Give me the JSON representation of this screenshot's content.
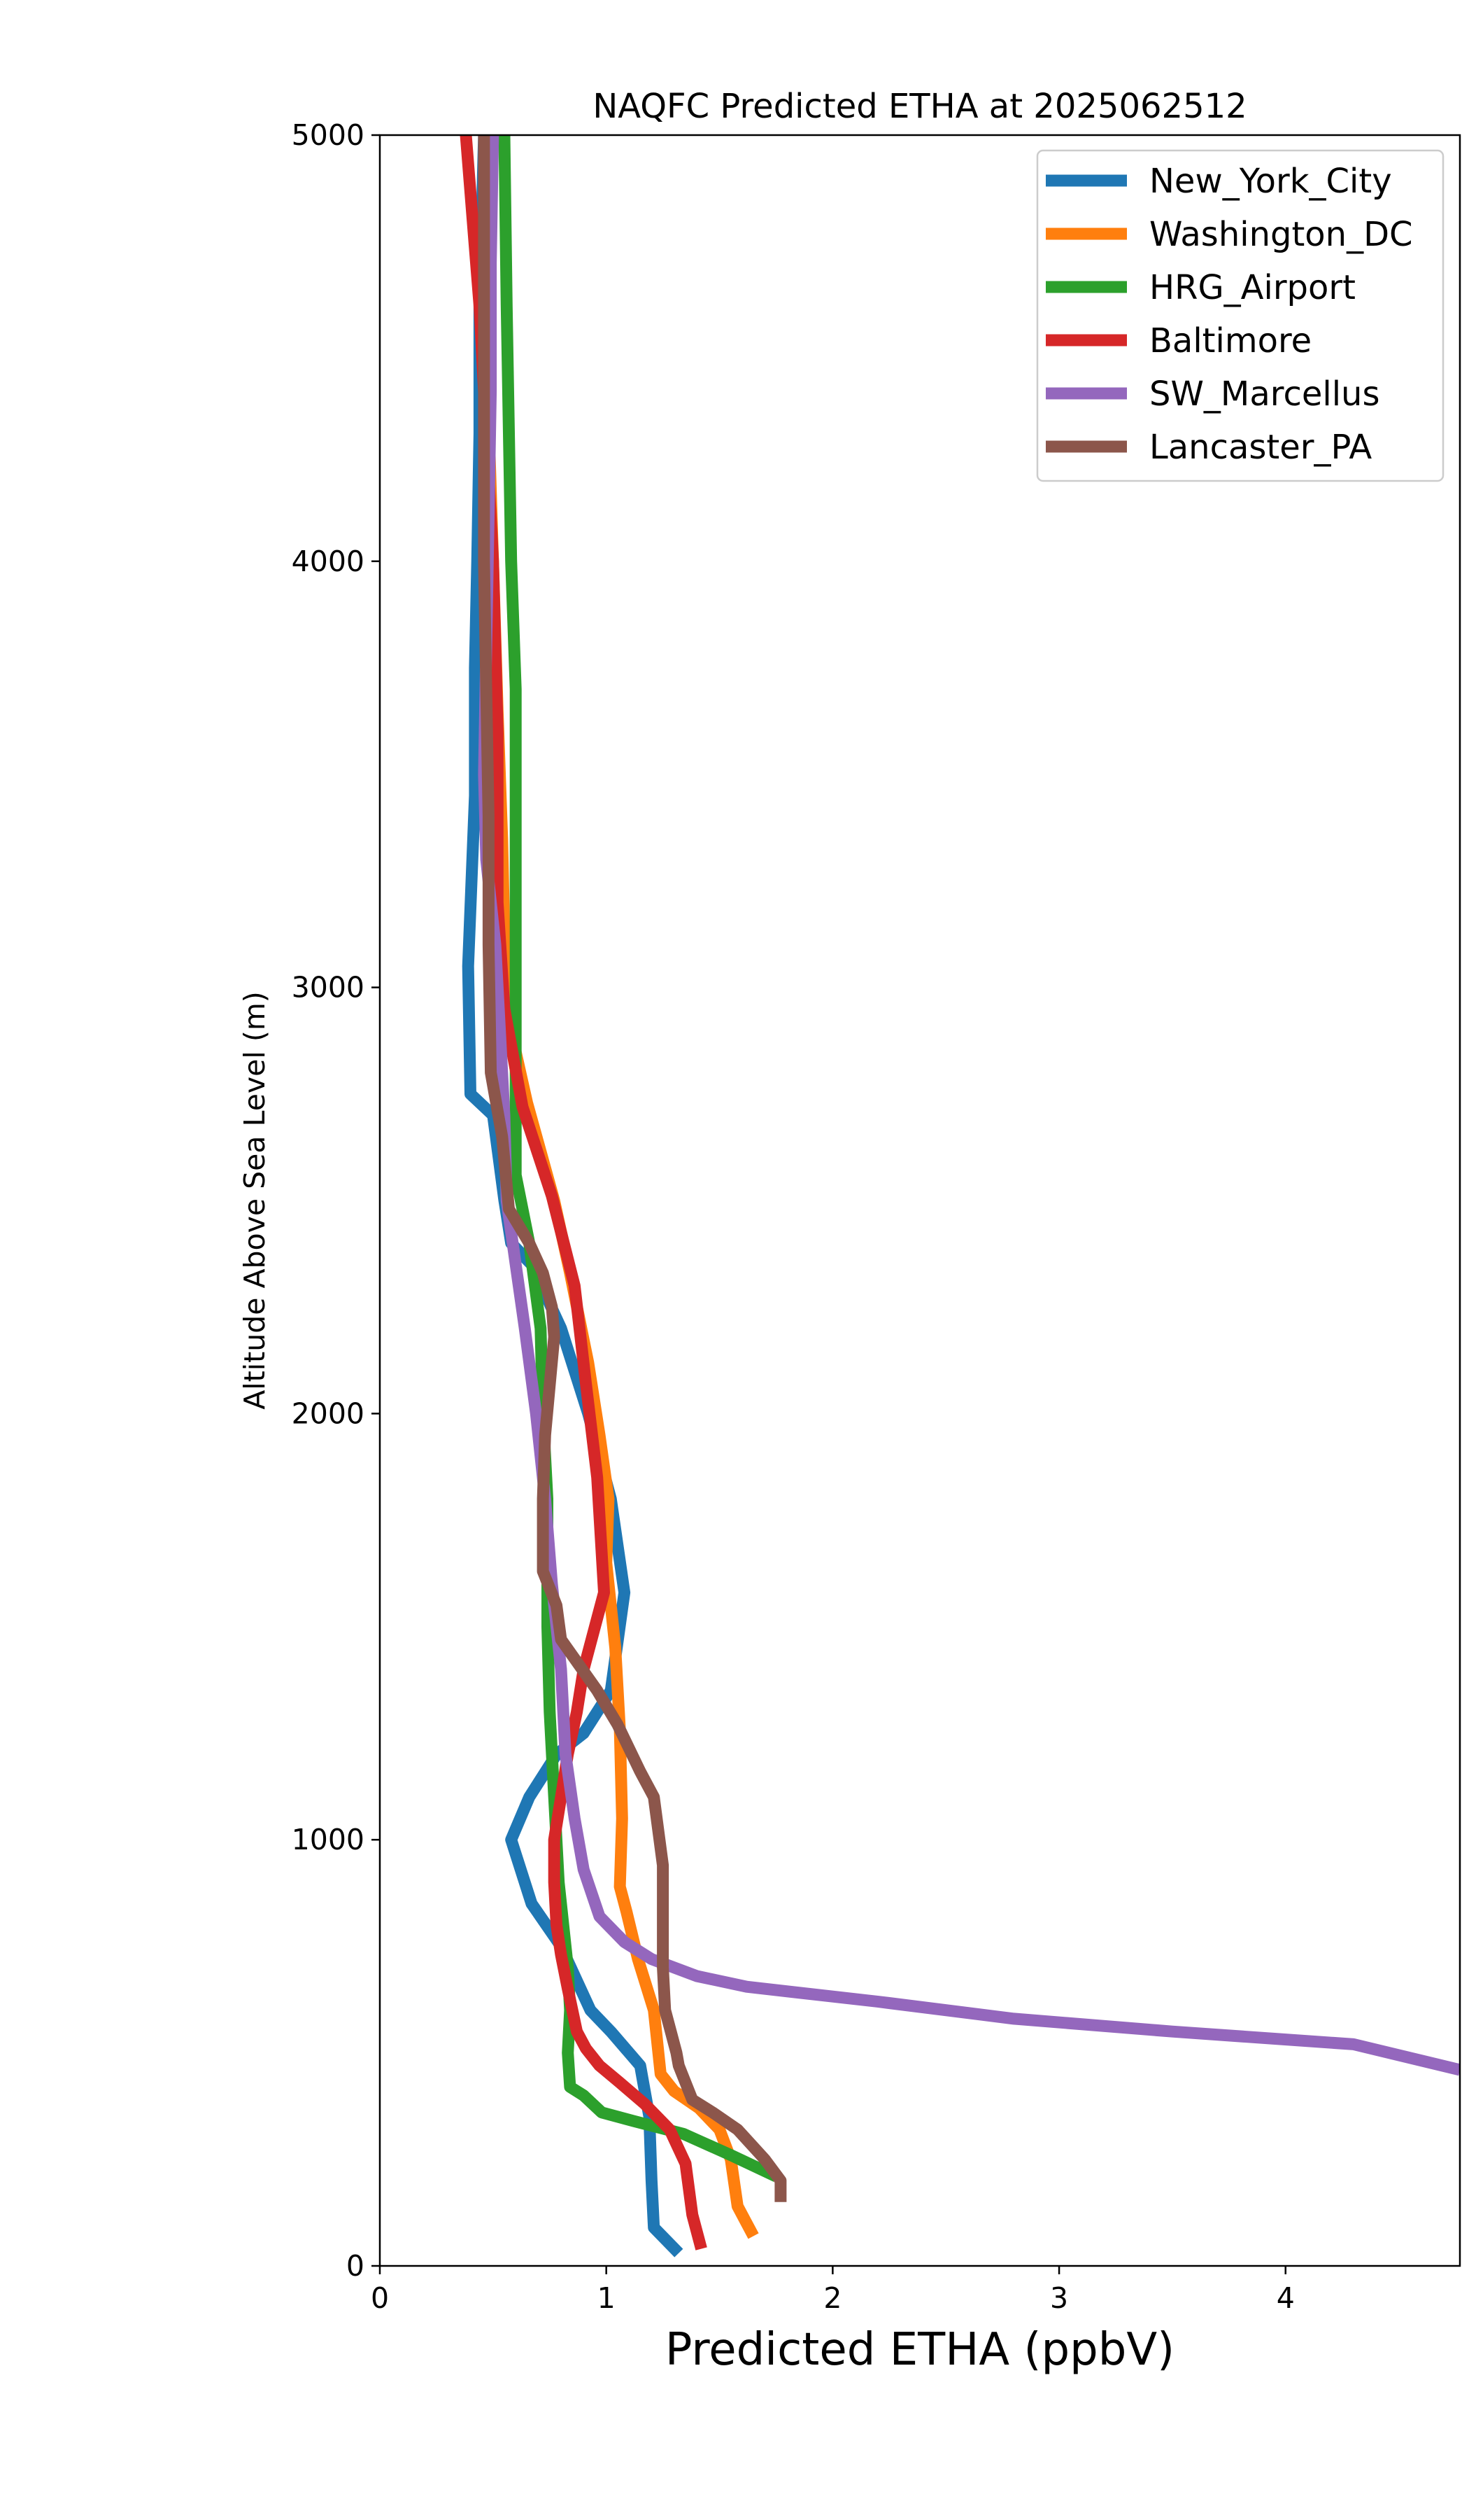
{
  "chart_data": {
    "type": "line",
    "title": "NAQFC Predicted ETHA at 2025062512",
    "xlabel": "Predicted ETHA (ppbV)",
    "ylabel": "Altitude Above Sea Level (m)",
    "xlim": [
      0,
      4.77
    ],
    "ylim": [
      0,
      5000
    ],
    "xticks": [
      0,
      1,
      2,
      3,
      4
    ],
    "yticks": [
      0,
      1000,
      2000,
      3000,
      4000,
      5000
    ],
    "grid": false,
    "legend_position": "top-right",
    "series": [
      {
        "name": "New_York_City",
        "color": "#1f77b4",
        "points": [
          [
            1.32,
            30
          ],
          [
            1.21,
            90
          ],
          [
            1.2,
            200
          ],
          [
            1.19,
            350
          ],
          [
            1.15,
            470
          ],
          [
            1.02,
            550
          ],
          [
            0.93,
            600
          ],
          [
            0.8,
            750
          ],
          [
            0.67,
            850
          ],
          [
            0.58,
            1000
          ],
          [
            0.66,
            1100
          ],
          [
            0.78,
            1200
          ],
          [
            0.9,
            1250
          ],
          [
            1.02,
            1350
          ],
          [
            1.08,
            1580
          ],
          [
            1.02,
            1800
          ],
          [
            0.92,
            2000
          ],
          [
            0.8,
            2200
          ],
          [
            0.67,
            2350
          ],
          [
            0.58,
            2400
          ],
          [
            0.55,
            2500
          ],
          [
            0.5,
            2700
          ],
          [
            0.4,
            2750
          ],
          [
            0.39,
            3050
          ],
          [
            0.42,
            3450
          ],
          [
            0.42,
            3750
          ],
          [
            0.43,
            4000
          ],
          [
            0.44,
            4300
          ],
          [
            0.44,
            4600
          ],
          [
            0.45,
            4800
          ],
          [
            0.46,
            5000
          ]
        ]
      },
      {
        "name": "Washington_DC",
        "color": "#ff7f0e",
        "points": [
          [
            1.65,
            70
          ],
          [
            1.58,
            140
          ],
          [
            1.55,
            250
          ],
          [
            1.5,
            320
          ],
          [
            1.41,
            370
          ],
          [
            1.3,
            410
          ],
          [
            1.24,
            450
          ],
          [
            1.21,
            600
          ],
          [
            1.14,
            720
          ],
          [
            1.09,
            830
          ],
          [
            1.06,
            890
          ],
          [
            1.07,
            1050
          ],
          [
            1.06,
            1260
          ],
          [
            1.04,
            1450
          ],
          [
            1.0,
            1650
          ],
          [
            1.01,
            1800
          ],
          [
            0.97,
            1950
          ],
          [
            0.92,
            2120
          ],
          [
            0.84,
            2330
          ],
          [
            0.77,
            2500
          ],
          [
            0.65,
            2730
          ],
          [
            0.57,
            2920
          ],
          [
            0.55,
            3120
          ],
          [
            0.54,
            3350
          ],
          [
            0.52,
            3650
          ],
          [
            0.5,
            4000
          ],
          [
            0.47,
            4500
          ],
          [
            0.47,
            5000
          ]
        ]
      },
      {
        "name": "HRG_Airport",
        "color": "#2ca02c",
        "points": [
          [
            1.75,
            210
          ],
          [
            1.55,
            260
          ],
          [
            1.34,
            310
          ],
          [
            1.12,
            340
          ],
          [
            0.98,
            360
          ],
          [
            0.9,
            400
          ],
          [
            0.84,
            420
          ],
          [
            0.83,
            500
          ],
          [
            0.84,
            600
          ],
          [
            0.83,
            700
          ],
          [
            0.81,
            800
          ],
          [
            0.79,
            900
          ],
          [
            0.77,
            1100
          ],
          [
            0.75,
            1300
          ],
          [
            0.74,
            1500
          ],
          [
            0.74,
            1800
          ],
          [
            0.72,
            2000
          ],
          [
            0.71,
            2200
          ],
          [
            0.66,
            2400
          ],
          [
            0.6,
            2560
          ],
          [
            0.6,
            2700
          ],
          [
            0.6,
            2900
          ],
          [
            0.6,
            3300
          ],
          [
            0.6,
            3700
          ],
          [
            0.58,
            4000
          ],
          [
            0.57,
            4300
          ],
          [
            0.56,
            4600
          ],
          [
            0.55,
            5000
          ]
        ]
      },
      {
        "name": "Baltimore",
        "color": "#d62728",
        "points": [
          [
            1.42,
            40
          ],
          [
            1.38,
            120
          ],
          [
            1.35,
            240
          ],
          [
            1.28,
            320
          ],
          [
            1.17,
            380
          ],
          [
            1.06,
            430
          ],
          [
            0.97,
            470
          ],
          [
            0.91,
            510
          ],
          [
            0.87,
            550
          ],
          [
            0.83,
            650
          ],
          [
            0.8,
            730
          ],
          [
            0.78,
            800
          ],
          [
            0.77,
            900
          ],
          [
            0.77,
            1000
          ],
          [
            0.8,
            1100
          ],
          [
            0.83,
            1200
          ],
          [
            0.87,
            1300
          ],
          [
            0.9,
            1400
          ],
          [
            0.95,
            1500
          ],
          [
            0.99,
            1580
          ],
          [
            0.96,
            1850
          ],
          [
            0.91,
            2070
          ],
          [
            0.86,
            2300
          ],
          [
            0.76,
            2510
          ],
          [
            0.63,
            2720
          ],
          [
            0.55,
            2950
          ],
          [
            0.52,
            3200
          ],
          [
            0.52,
            3600
          ],
          [
            0.5,
            4000
          ],
          [
            0.47,
            4300
          ],
          [
            0.44,
            4600
          ],
          [
            0.41,
            4800
          ],
          [
            0.38,
            5000
          ]
        ]
      },
      {
        "name": "SW_Marcellus",
        "color": "#9467bd",
        "points": [
          [
            4.77,
            460
          ],
          [
            4.3,
            520
          ],
          [
            3.5,
            550
          ],
          [
            2.8,
            580
          ],
          [
            2.2,
            620
          ],
          [
            1.62,
            655
          ],
          [
            1.4,
            680
          ],
          [
            1.2,
            720
          ],
          [
            1.08,
            760
          ],
          [
            0.97,
            820
          ],
          [
            0.9,
            930
          ],
          [
            0.86,
            1050
          ],
          [
            0.82,
            1200
          ],
          [
            0.8,
            1400
          ],
          [
            0.76,
            1600
          ],
          [
            0.73,
            1800
          ],
          [
            0.69,
            2000
          ],
          [
            0.64,
            2200
          ],
          [
            0.6,
            2350
          ],
          [
            0.56,
            2500
          ],
          [
            0.55,
            2700
          ],
          [
            0.53,
            2900
          ],
          [
            0.51,
            3100
          ],
          [
            0.47,
            3300
          ],
          [
            0.46,
            3500
          ],
          [
            0.47,
            3800
          ],
          [
            0.48,
            4100
          ],
          [
            0.49,
            4400
          ],
          [
            0.49,
            4700
          ],
          [
            0.5,
            5000
          ]
        ]
      },
      {
        "name": "Lancaster_PA",
        "color": "#8c564b",
        "points": [
          [
            1.77,
            150
          ],
          [
            1.77,
            200
          ],
          [
            1.7,
            250
          ],
          [
            1.58,
            320
          ],
          [
            1.47,
            360
          ],
          [
            1.38,
            390
          ],
          [
            1.32,
            470
          ],
          [
            1.31,
            500
          ],
          [
            1.28,
            560
          ],
          [
            1.26,
            600
          ],
          [
            1.25,
            700
          ],
          [
            1.25,
            940
          ],
          [
            1.21,
            1100
          ],
          [
            1.15,
            1160
          ],
          [
            1.05,
            1270
          ],
          [
            0.96,
            1350
          ],
          [
            0.88,
            1410
          ],
          [
            0.8,
            1470
          ],
          [
            0.78,
            1550
          ],
          [
            0.72,
            1630
          ],
          [
            0.72,
            1800
          ],
          [
            0.73,
            1950
          ],
          [
            0.77,
            2180
          ],
          [
            0.76,
            2250
          ],
          [
            0.72,
            2330
          ],
          [
            0.66,
            2400
          ],
          [
            0.57,
            2480
          ],
          [
            0.54,
            2650
          ],
          [
            0.49,
            2800
          ],
          [
            0.48,
            3100
          ],
          [
            0.48,
            3400
          ],
          [
            0.47,
            3700
          ],
          [
            0.46,
            4000
          ],
          [
            0.46,
            4400
          ],
          [
            0.46,
            4800
          ],
          [
            0.46,
            5000
          ]
        ]
      }
    ]
  }
}
